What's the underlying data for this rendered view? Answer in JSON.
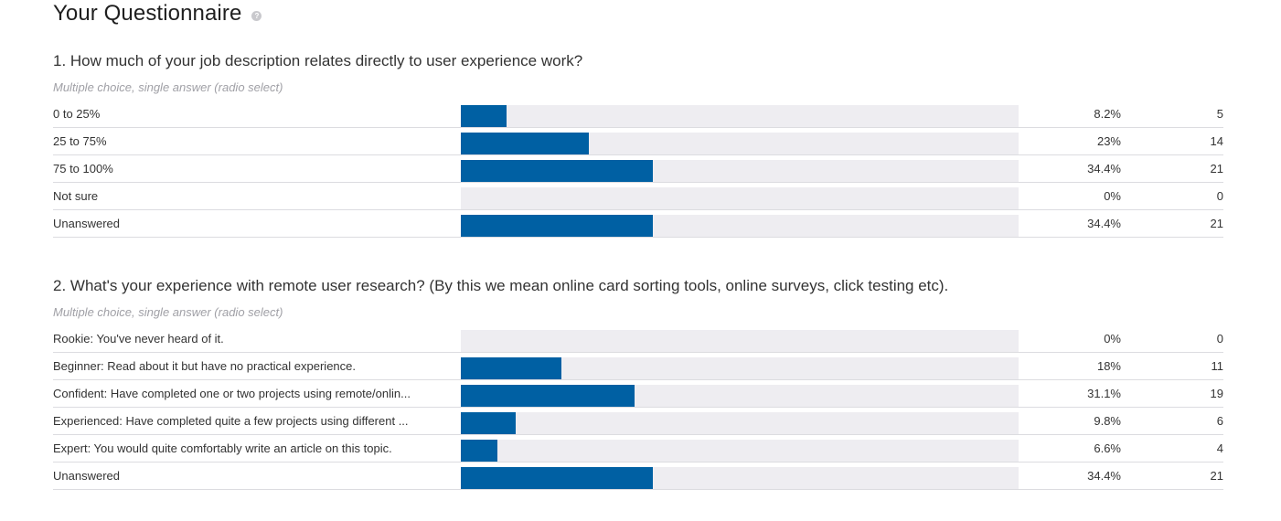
{
  "page_title": "Your Questionnaire",
  "help_icon": "question-mark-icon",
  "colors": {
    "bar_fill": "#0060a3",
    "bar_track": "#eeedf1"
  },
  "questions": [
    {
      "title": "1. How much of your job description relates directly to user experience work?",
      "subtitle": "Multiple choice, single answer (radio select)",
      "answers": [
        {
          "label": "0 to 25%",
          "percent_text": "8.2%",
          "percent": 8.2,
          "count": "5"
        },
        {
          "label": "25 to 75%",
          "percent_text": "23%",
          "percent": 23,
          "count": "14"
        },
        {
          "label": "75 to 100%",
          "percent_text": "34.4%",
          "percent": 34.4,
          "count": "21"
        },
        {
          "label": "Not sure",
          "percent_text": "0%",
          "percent": 0,
          "count": "0"
        },
        {
          "label": "Unanswered",
          "percent_text": "34.4%",
          "percent": 34.4,
          "count": "21"
        }
      ]
    },
    {
      "title": "2. What's your experience with remote user research? (By this we mean online card sorting tools, online surveys, click testing etc).",
      "subtitle": "Multiple choice, single answer (radio select)",
      "answers": [
        {
          "label": "Rookie: You've never heard of it.",
          "percent_text": "0%",
          "percent": 0,
          "count": "0"
        },
        {
          "label": "Beginner: Read about it but have no practical experience.",
          "percent_text": "18%",
          "percent": 18,
          "count": "11"
        },
        {
          "label": "Confident: Have completed one or two projects using remote/onlin...",
          "percent_text": "31.1%",
          "percent": 31.1,
          "count": "19"
        },
        {
          "label": "Experienced: Have completed quite a few projects using different ...",
          "percent_text": "9.8%",
          "percent": 9.8,
          "count": "6"
        },
        {
          "label": "Expert: You would quite comfortably write an article on this topic.",
          "percent_text": "6.6%",
          "percent": 6.6,
          "count": "4"
        },
        {
          "label": "Unanswered",
          "percent_text": "34.4%",
          "percent": 34.4,
          "count": "21"
        }
      ]
    }
  ]
}
